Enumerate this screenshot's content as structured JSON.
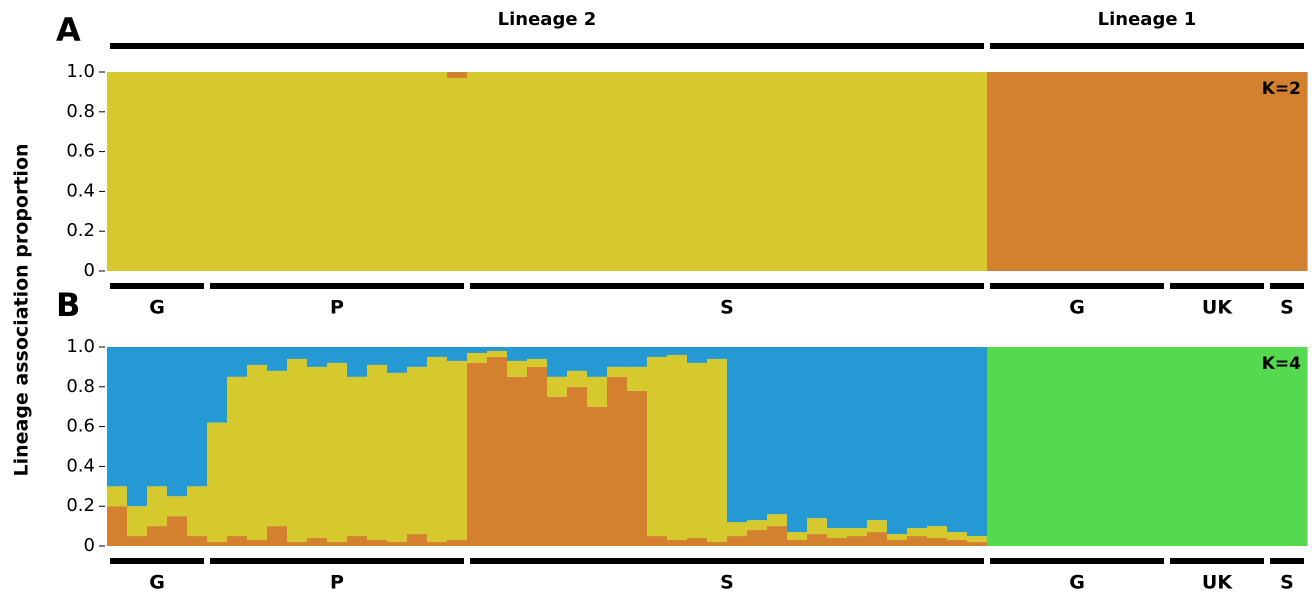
{
  "y_axis_label": "Lineage association proportion",
  "lineages": [
    {
      "label": "Lineage 2",
      "first": 0,
      "last": 43
    },
    {
      "label": "Lineage 1",
      "first": 44,
      "last": 59
    }
  ],
  "populations": [
    {
      "label": "G",
      "first": 0,
      "last": 4
    },
    {
      "label": "P",
      "first": 5,
      "last": 17
    },
    {
      "label": "S",
      "first": 18,
      "last": 43
    },
    {
      "label": "G",
      "first": 44,
      "last": 52
    },
    {
      "label": "UK",
      "first": 53,
      "last": 57
    },
    {
      "label": "S",
      "first": 58,
      "last": 59
    }
  ],
  "chart_data": [
    {
      "type": "bar",
      "stacked": true,
      "panel_label": "A",
      "annotation": "K=2",
      "categories": [
        null,
        null,
        null,
        null,
        null,
        null,
        null,
        null,
        null,
        null,
        null,
        null,
        null,
        null,
        null,
        null,
        null,
        null,
        null,
        null,
        null,
        null,
        null,
        null,
        null,
        null,
        null,
        null,
        null,
        null,
        null,
        null,
        null,
        null,
        null,
        null,
        null,
        null,
        null,
        null,
        null,
        null,
        null,
        null,
        null,
        null,
        null,
        null,
        null,
        null,
        null,
        null,
        null,
        null,
        null,
        null,
        null,
        null,
        null,
        null
      ],
      "series": [
        {
          "color": "#d5c92e",
          "values": [
            1,
            1,
            1,
            1,
            1,
            1,
            1,
            1,
            1,
            1,
            1,
            1,
            1,
            1,
            1,
            1,
            1,
            0.97,
            1,
            1,
            1,
            1,
            1,
            1,
            1,
            1,
            1,
            1,
            1,
            1,
            1,
            1,
            1,
            1,
            1,
            1,
            1,
            1,
            1,
            1,
            1,
            1,
            1,
            1,
            0,
            0,
            0,
            0,
            0,
            0,
            0,
            0,
            0,
            0,
            0,
            0,
            0,
            0,
            0,
            0
          ]
        },
        {
          "color": "#d3812f",
          "values": [
            0,
            0,
            0,
            0,
            0,
            0,
            0,
            0,
            0,
            0,
            0,
            0,
            0,
            0,
            0,
            0,
            0,
            0.03,
            0,
            0,
            0,
            0,
            0,
            0,
            0,
            0,
            0,
            0,
            0,
            0,
            0,
            0,
            0,
            0,
            0,
            0,
            0,
            0,
            0,
            0,
            0,
            0,
            0,
            0,
            1,
            1,
            1,
            1,
            1,
            1,
            1,
            1,
            1,
            1,
            1,
            1,
            1,
            1,
            1,
            1
          ]
        }
      ],
      "ylim": [
        0,
        1
      ],
      "yticks": [
        0,
        0.2,
        0.4,
        0.6,
        0.8,
        {
          "value": 1,
          "label": "1.0"
        }
      ]
    },
    {
      "type": "bar",
      "stacked": true,
      "panel_label": "B",
      "annotation": "K=4",
      "categories": [
        null,
        null,
        null,
        null,
        null,
        null,
        null,
        null,
        null,
        null,
        null,
        null,
        null,
        null,
        null,
        null,
        null,
        null,
        null,
        null,
        null,
        null,
        null,
        null,
        null,
        null,
        null,
        null,
        null,
        null,
        null,
        null,
        null,
        null,
        null,
        null,
        null,
        null,
        null,
        null,
        null,
        null,
        null,
        null,
        null,
        null,
        null,
        null,
        null,
        null,
        null,
        null,
        null,
        null,
        null,
        null,
        null,
        null,
        null,
        null
      ],
      "series": [
        {
          "color": "#d3812f",
          "values": [
            0.2,
            0.05,
            0.1,
            0.15,
            0.05,
            0.02,
            0.05,
            0.03,
            0.1,
            0.02,
            0.04,
            0.02,
            0.05,
            0.03,
            0.02,
            0.06,
            0.02,
            0.03,
            0.92,
            0.95,
            0.85,
            0.9,
            0.75,
            0.8,
            0.7,
            0.85,
            0.78,
            0.05,
            0.03,
            0.04,
            0.02,
            0.05,
            0.08,
            0.1,
            0.03,
            0.06,
            0.04,
            0.05,
            0.07,
            0.03,
            0.05,
            0.04,
            0.03,
            0.02,
            0,
            0,
            0,
            0,
            0,
            0,
            0,
            0,
            0,
            0,
            0,
            0,
            0,
            0,
            0,
            0
          ]
        },
        {
          "color": "#d5c92e",
          "values": [
            0.1,
            0.15,
            0.2,
            0.1,
            0.25,
            0.6,
            0.8,
            0.88,
            0.78,
            0.92,
            0.86,
            0.9,
            0.8,
            0.88,
            0.85,
            0.84,
            0.93,
            0.9,
            0.05,
            0.03,
            0.08,
            0.04,
            0.1,
            0.08,
            0.15,
            0.05,
            0.12,
            0.9,
            0.93,
            0.88,
            0.92,
            0.07,
            0.05,
            0.06,
            0.04,
            0.08,
            0.05,
            0.04,
            0.06,
            0.03,
            0.04,
            0.06,
            0.04,
            0.03,
            0,
            0,
            0,
            0,
            0,
            0,
            0,
            0,
            0,
            0,
            0,
            0,
            0,
            0,
            0,
            0
          ]
        },
        {
          "color": "#2499d3",
          "values": [
            0.7,
            0.8,
            0.7,
            0.75,
            0.7,
            0.38,
            0.15,
            0.09,
            0.12,
            0.06,
            0.1,
            0.08,
            0.15,
            0.09,
            0.13,
            0.1,
            0.05,
            0.07,
            0.03,
            0.02,
            0.07,
            0.06,
            0.15,
            0.12,
            0.15,
            0.1,
            0.1,
            0.05,
            0.04,
            0.08,
            0.06,
            0.88,
            0.87,
            0.84,
            0.93,
            0.86,
            0.91,
            0.91,
            0.87,
            0.94,
            0.91,
            0.9,
            0.93,
            0.95,
            0,
            0,
            0,
            0,
            0,
            0,
            0,
            0,
            0,
            0,
            0,
            0,
            0,
            0,
            0,
            0
          ]
        },
        {
          "color": "#55d94f",
          "values": [
            0,
            0,
            0,
            0,
            0,
            0,
            0,
            0,
            0,
            0,
            0,
            0,
            0,
            0,
            0,
            0,
            0,
            0,
            0,
            0,
            0,
            0,
            0,
            0,
            0,
            0,
            0,
            0,
            0,
            0,
            0,
            0,
            0,
            0,
            0,
            0,
            0,
            0,
            0,
            0,
            0,
            0,
            0,
            0,
            1,
            1,
            1,
            1,
            1,
            1,
            1,
            1,
            1,
            1,
            1,
            1,
            1,
            1,
            1,
            1
          ]
        }
      ],
      "ylim": [
        0,
        1
      ],
      "yticks": [
        0,
        0.2,
        0.4,
        0.6,
        0.8,
        {
          "value": 1,
          "label": "1.0"
        }
      ]
    }
  ]
}
